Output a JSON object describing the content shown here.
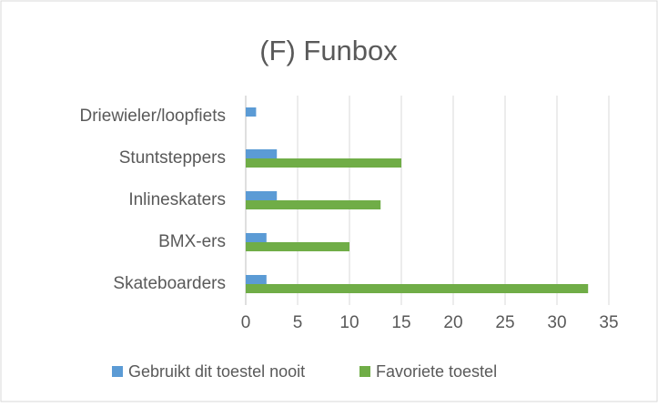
{
  "chart_data": {
    "type": "barh",
    "title": "(F) Funbox",
    "categories": [
      "Driewieler/loopfiets",
      "Stuntsteppers",
      "Inlineskaters",
      "BMX-ers",
      "Skateboarders"
    ],
    "series": [
      {
        "name": "Gebruikt dit toestel nooit",
        "color": "#5b9bd5",
        "values": [
          1,
          3,
          3,
          2,
          2
        ]
      },
      {
        "name": "Favoriete toestel",
        "color": "#70ad47",
        "values": [
          0,
          15,
          13,
          10,
          33
        ]
      }
    ],
    "xlim": [
      0,
      35
    ],
    "xticks": [
      0,
      5,
      10,
      15,
      20,
      25,
      30,
      35
    ],
    "grid": true,
    "legend": "bottom"
  }
}
